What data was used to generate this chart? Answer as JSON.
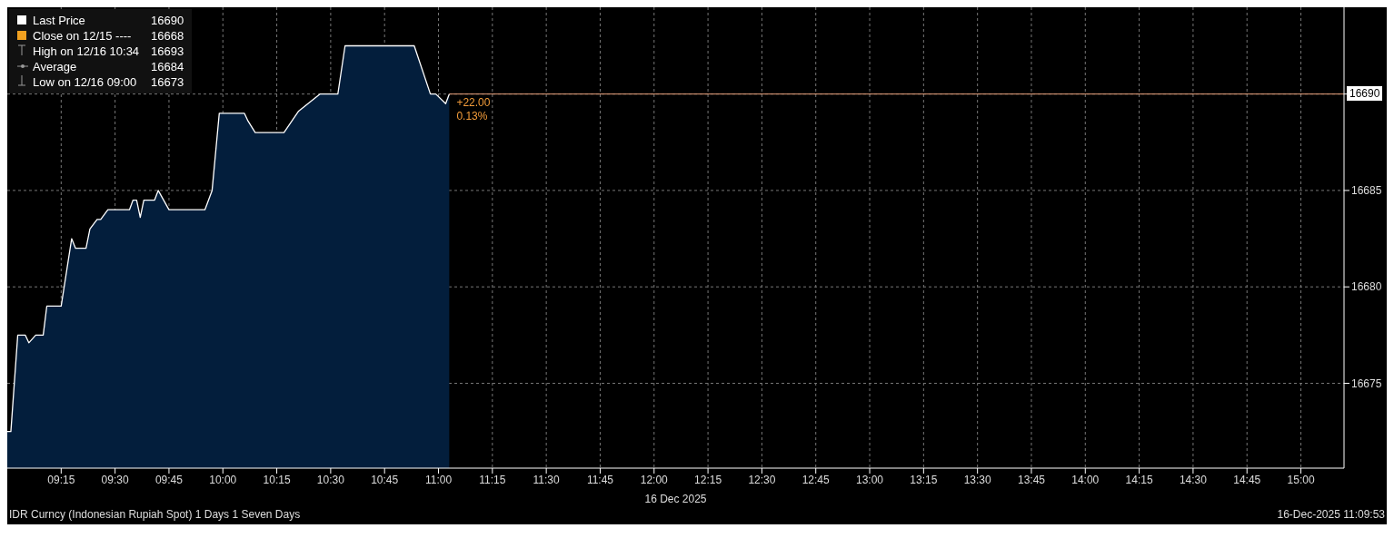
{
  "chart_data": {
    "type": "area",
    "title": "IDR Curncy (Indonesian Rupiah Spot) 1 Days 1 Seven Days",
    "xlabel": "16 Dec 2025",
    "x": [
      9.0,
      9.0167,
      9.0486,
      9.0833,
      9.1,
      9.132,
      9.1667,
      9.1833,
      9.25,
      9.2986,
      9.3167,
      9.3653,
      9.3833,
      9.4167,
      9.4333,
      9.4667,
      9.5667,
      9.5833,
      9.6,
      9.6167,
      9.6333,
      9.6833,
      9.7,
      9.75,
      9.9167,
      9.95,
      9.9833,
      10.1,
      10.1167,
      10.15,
      10.2833,
      10.35,
      10.45,
      10.5333,
      10.5667,
      10.8875,
      10.9625,
      10.9875,
      11.0333,
      11.05
    ],
    "series": [
      {
        "name": "Last Price",
        "color": "#ffffff",
        "values": [
          16672.5,
          16672.5,
          16677.5,
          16677.5,
          16677.1,
          16677.5,
          16677.5,
          16679.0,
          16679.0,
          16682.5,
          16682.0,
          16682.0,
          16683.0,
          16683.5,
          16683.5,
          16684.0,
          16684.0,
          16684.5,
          16684.5,
          16683.6,
          16684.5,
          16684.5,
          16685.0,
          16684.0,
          16684.0,
          16685.0,
          16689.0,
          16689.0,
          16688.6,
          16688.0,
          16688.0,
          16689.1,
          16690.0,
          16690.0,
          16692.5,
          16692.5,
          16690.0,
          16690.0,
          16689.5,
          16690.0
        ]
      }
    ],
    "xlim": [
      9.0,
      15.2
    ],
    "xticks": [
      {
        "value": 9.25,
        "label": "09:15"
      },
      {
        "value": 9.5,
        "label": "09:30"
      },
      {
        "value": 9.75,
        "label": "09:45"
      },
      {
        "value": 10,
        "label": "10:00"
      },
      {
        "value": 10.25,
        "label": "10:15"
      },
      {
        "value": 10.5,
        "label": "10:30"
      },
      {
        "value": 10.75,
        "label": "10:45"
      },
      {
        "value": 11,
        "label": "11:00"
      },
      {
        "value": 11.25,
        "label": "11:15"
      },
      {
        "value": 11.5,
        "label": "11:30"
      },
      {
        "value": 11.75,
        "label": "11:45"
      },
      {
        "value": 12,
        "label": "12:00"
      },
      {
        "value": 12.25,
        "label": "12:15"
      },
      {
        "value": 12.5,
        "label": "12:30"
      },
      {
        "value": 12.75,
        "label": "12:45"
      },
      {
        "value": 13,
        "label": "13:00"
      },
      {
        "value": 13.25,
        "label": "13:15"
      },
      {
        "value": 13.5,
        "label": "13:30"
      },
      {
        "value": 13.75,
        "label": "13:45"
      },
      {
        "value": 14,
        "label": "14:00"
      },
      {
        "value": 14.25,
        "label": "14:15"
      },
      {
        "value": 14.5,
        "label": "14:30"
      },
      {
        "value": 14.75,
        "label": "14:45"
      },
      {
        "value": 15,
        "label": "15:00"
      }
    ],
    "ylim": [
      16670.6,
      16694.5
    ],
    "yticks": [
      16675,
      16680,
      16685,
      {
        "value": 16690,
        "label": null
      }
    ],
    "grid": true,
    "legend": "top left",
    "line_style": "solid",
    "marker": "none",
    "ref_lines": [
      {
        "axis": "y",
        "value": 16690,
        "label": "16690",
        "color": "#e8a07a"
      }
    ],
    "annotations": [
      "16690",
      "Close on 12/15 ---- 16668",
      "High on 12/16 10:34 16693",
      "Average 16684",
      "Low on 12/16 09:00 16673",
      {
        "text": "+22.00",
        "x": 11.05,
        "y": 16690
      },
      {
        "text": "0.13%",
        "x": 11.05,
        "y": 16690
      },
      "16-Dec-2025 11:09:53"
    ]
  }
}
